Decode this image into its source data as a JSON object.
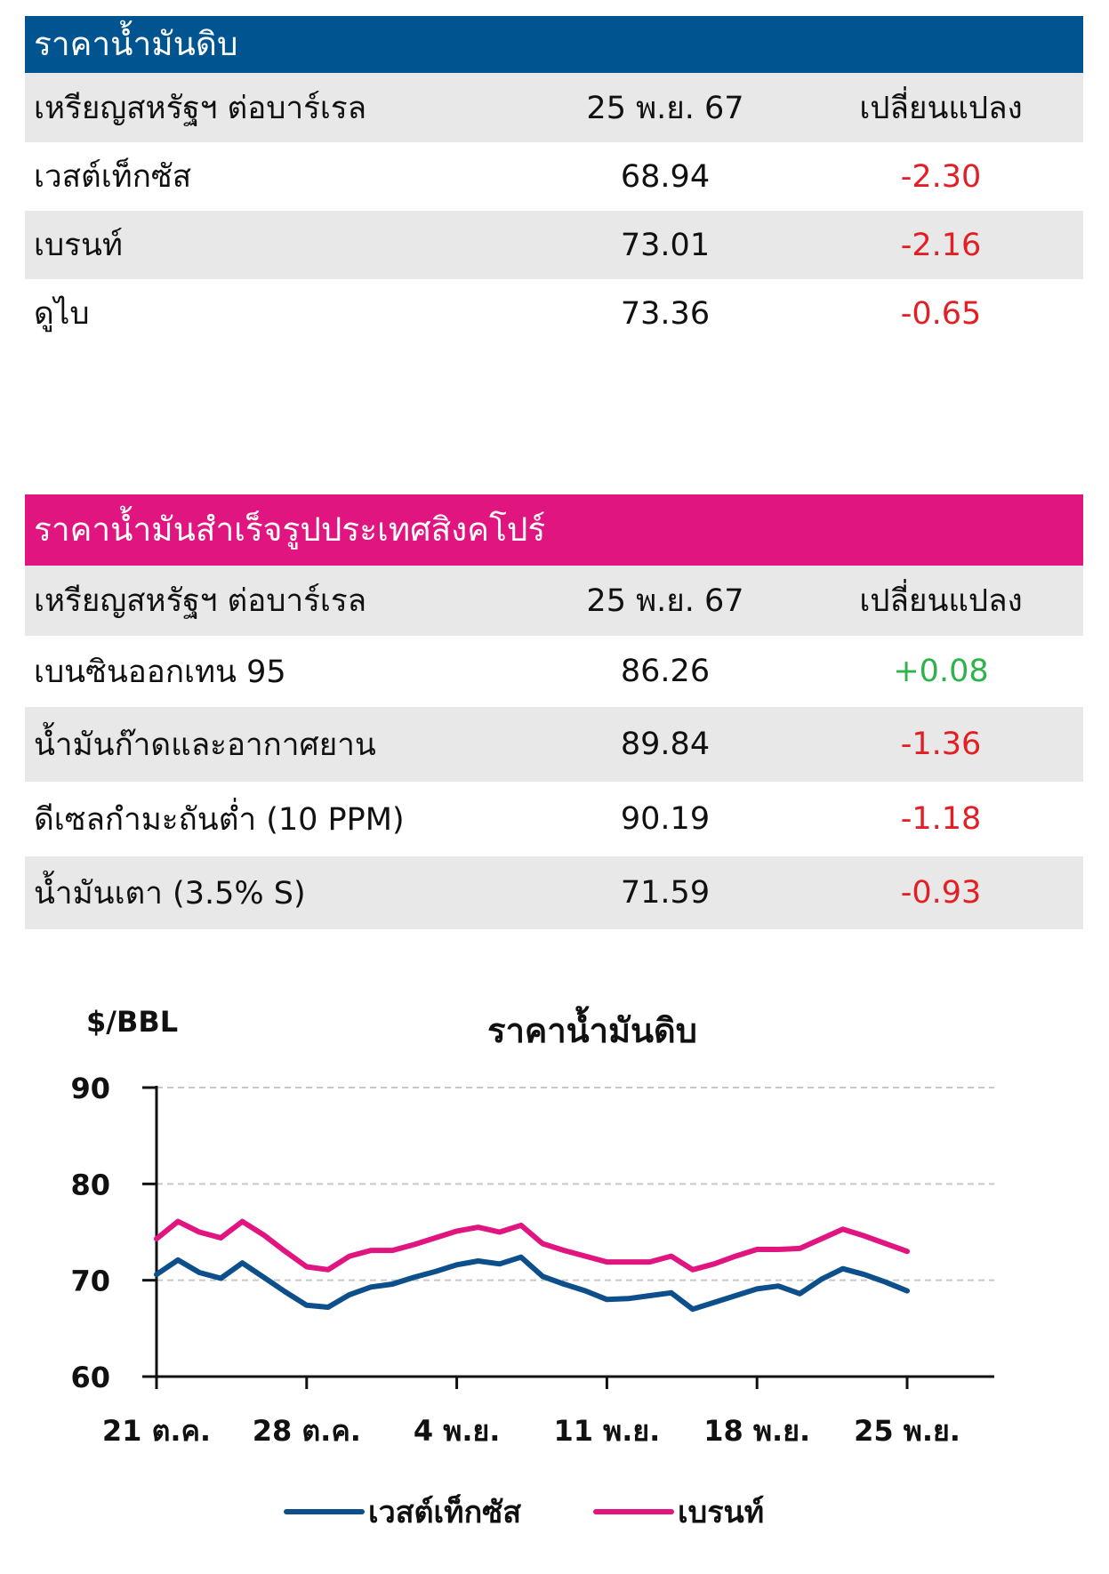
{
  "crude_table": {
    "title": "ราคาน้ำมันดิบ",
    "headers": [
      "เหรียญสหรัฐฯ ต่อบาร์เรล",
      "25 พ.ย. 67",
      "เปลี่ยนแปลง"
    ],
    "rows": [
      {
        "name": "เวสต์เท็กซัส",
        "price": "68.94",
        "change": "-2.30"
      },
      {
        "name": "เบรนท์",
        "price": "73.01",
        "change": "-2.16"
      },
      {
        "name": "ดูไบ",
        "price": "73.36",
        "change": "-0.65"
      }
    ]
  },
  "singapore_table": {
    "title": "ราคาน้ำมันสำเร็จรูปประเทศสิงคโปร์",
    "headers": [
      "เหรียญสหรัฐฯ ต่อบาร์เรล",
      "25 พ.ย. 67",
      "เปลี่ยนแปลง"
    ],
    "rows": [
      {
        "name": "เบนซินออกเทน 95",
        "price": "86.26",
        "change": "+0.08"
      },
      {
        "name": "น้ำมันก๊าดและอากาศยาน",
        "price": "89.84",
        "change": "-1.36"
      },
      {
        "name": "ดีเซลกำมะถันต่ำ (10 PPM)",
        "price": "90.19",
        "change": "-1.18"
      },
      {
        "name": "น้ำมันเตา (3.5% S)",
        "price": "71.59",
        "change": "-0.93"
      }
    ]
  },
  "colors": {
    "wti": "#0d4f8b",
    "brent": "#e0157f",
    "negative": "#e31e24",
    "positive": "#2db34a"
  },
  "chart_data": {
    "type": "line",
    "title": "ราคาน้ำมันดิบ",
    "ylabel": "$/BBL",
    "ylim": [
      60,
      90
    ],
    "yticks": [
      60,
      70,
      80,
      90
    ],
    "xticks": [
      "21 ต.ค.",
      "28 ต.ค.",
      "4 พ.ย.",
      "11 พ.ย.",
      "18 พ.ย.",
      "25 พ.ย."
    ],
    "xtick_index": [
      0,
      7,
      14,
      21,
      28,
      35
    ],
    "x_count": 36,
    "grid": "horizontal dashed",
    "legend": "bottom",
    "series": [
      {
        "name": "เวสต์เท็กซัส",
        "points": [
          [
            0,
            70.6
          ],
          [
            1,
            72.1
          ],
          [
            2,
            70.8
          ],
          [
            3,
            70.2
          ],
          [
            4,
            71.8
          ],
          [
            5,
            70.3
          ],
          [
            6,
            68.8
          ],
          [
            7,
            67.4
          ],
          [
            8,
            67.2
          ],
          [
            9,
            68.5
          ],
          [
            10,
            69.3
          ],
          [
            11,
            69.6
          ],
          [
            12,
            70.3
          ],
          [
            13,
            70.9
          ],
          [
            14,
            71.6
          ],
          [
            15,
            72.0
          ],
          [
            16,
            71.7
          ],
          [
            17,
            72.4
          ],
          [
            18,
            70.4
          ],
          [
            19,
            69.6
          ],
          [
            20,
            68.9
          ],
          [
            21,
            68.0
          ],
          [
            22,
            68.1
          ],
          [
            23,
            68.4
          ],
          [
            24,
            68.7
          ],
          [
            25,
            67.0
          ],
          [
            26,
            67.7
          ],
          [
            27,
            68.4
          ],
          [
            28,
            69.1
          ],
          [
            29,
            69.4
          ],
          [
            30,
            68.6
          ],
          [
            31,
            70.1
          ],
          [
            32,
            71.2
          ],
          [
            33,
            70.6
          ],
          [
            34,
            69.8
          ],
          [
            35,
            68.9
          ]
        ]
      },
      {
        "name": "เบรนท์",
        "points": [
          [
            0,
            74.3
          ],
          [
            1,
            76.1
          ],
          [
            2,
            75.0
          ],
          [
            3,
            74.4
          ],
          [
            4,
            76.1
          ],
          [
            5,
            74.7
          ],
          [
            6,
            73.0
          ],
          [
            7,
            71.4
          ],
          [
            8,
            71.1
          ],
          [
            9,
            72.5
          ],
          [
            10,
            73.1
          ],
          [
            11,
            73.1
          ],
          [
            12,
            73.7
          ],
          [
            13,
            74.4
          ],
          [
            14,
            75.1
          ],
          [
            15,
            75.5
          ],
          [
            16,
            75.0
          ],
          [
            17,
            75.7
          ],
          [
            18,
            73.8
          ],
          [
            19,
            73.1
          ],
          [
            20,
            72.5
          ],
          [
            21,
            71.9
          ],
          [
            22,
            71.9
          ],
          [
            23,
            71.9
          ],
          [
            24,
            72.5
          ],
          [
            25,
            71.1
          ],
          [
            26,
            71.7
          ],
          [
            27,
            72.5
          ],
          [
            28,
            73.2
          ],
          [
            29,
            73.2
          ],
          [
            30,
            73.3
          ],
          [
            31,
            74.3
          ],
          [
            32,
            75.3
          ],
          [
            33,
            74.6
          ],
          [
            34,
            73.8
          ],
          [
            35,
            73.0
          ]
        ]
      }
    ]
  }
}
